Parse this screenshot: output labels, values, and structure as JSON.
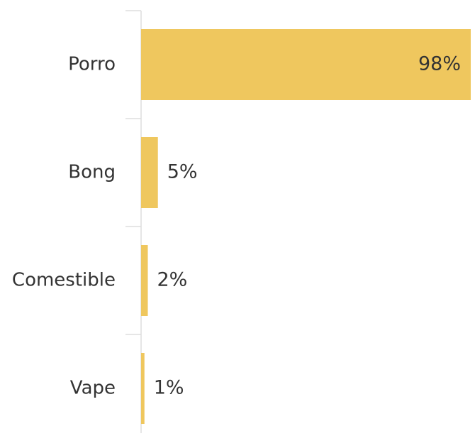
{
  "chart_data": {
    "type": "bar",
    "orientation": "horizontal",
    "categories": [
      "Porro",
      "Bong",
      "Comestible",
      "Vape"
    ],
    "values": [
      98,
      5,
      2,
      1
    ],
    "value_labels": [
      "98%",
      "5%",
      "2%",
      "1%"
    ],
    "xlim": [
      0,
      98
    ],
    "grid": false,
    "colors": {
      "bar": "#EFC75E",
      "axis": "#DDDDDD",
      "text": "#333333"
    }
  }
}
